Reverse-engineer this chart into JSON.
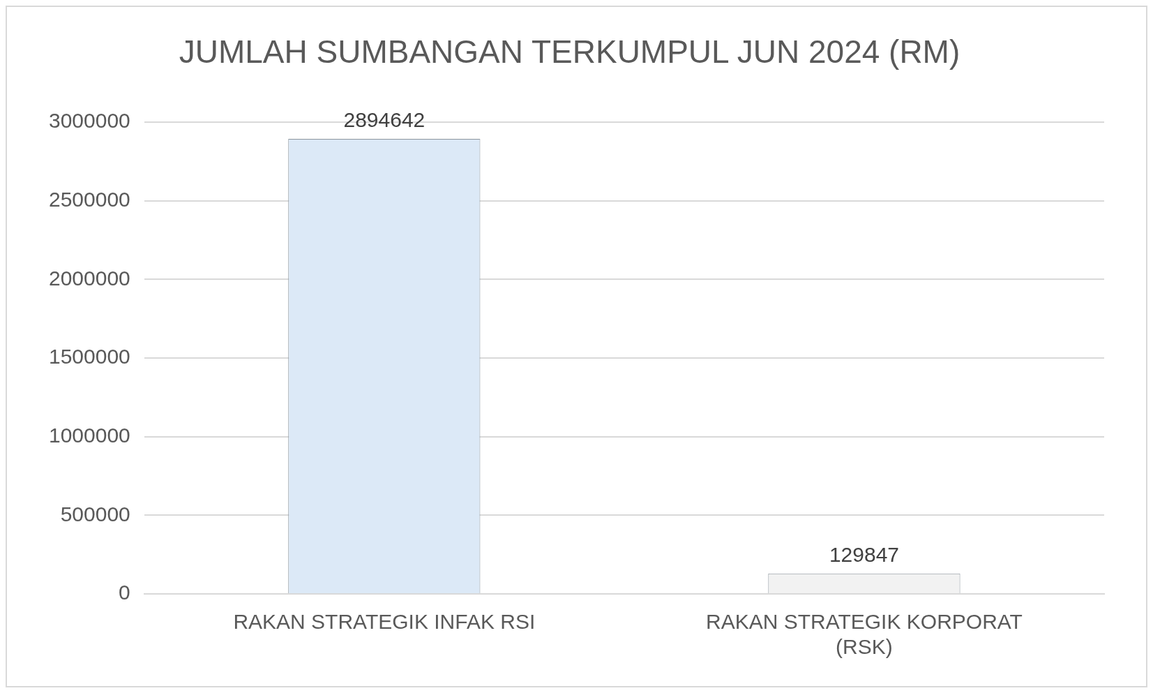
{
  "chart_data": {
    "type": "bar",
    "title": "JUMLAH SUMBANGAN TERKUMPUL JUN 2024 (RM)",
    "categories": [
      "RAKAN STRATEGIK INFAK RSI",
      "RAKAN STRATEGIK KORPORAT (RSK)"
    ],
    "values": [
      2894642,
      129847
    ],
    "colors": [
      "#dce9f7",
      "#f2f2f2"
    ],
    "ylim": [
      0,
      3000000
    ],
    "yticks": [
      0,
      500000,
      1000000,
      1500000,
      2000000,
      2500000,
      3000000
    ],
    "grid": "y",
    "legend": false,
    "data_labels": true
  }
}
